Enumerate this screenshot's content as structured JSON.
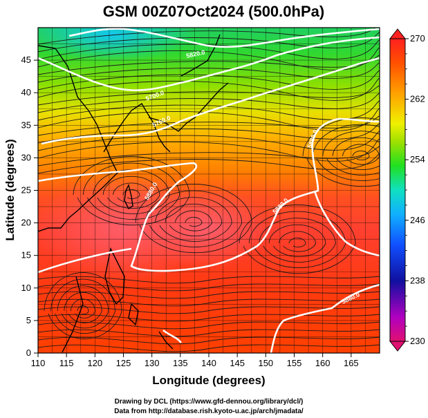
{
  "title": "GSM 00Z07Oct2024 (500.0hPa)",
  "xlabel": "Longitude (degrees)",
  "ylabel": "Latitude  (degrees)",
  "x_ticks": [
    "110",
    "115",
    "120",
    "125",
    "130",
    "135",
    "140",
    "145",
    "150",
    "155",
    "160",
    "165"
  ],
  "y_ticks": [
    "0",
    "5",
    "10",
    "15",
    "20",
    "25",
    "30",
    "35",
    "40",
    "45"
  ],
  "colorbar": {
    "ticks": [
      "270",
      "262",
      "254",
      "246",
      "238",
      "230"
    ],
    "colors": [
      "#e01070",
      "#b000c0",
      "#1010a0",
      "#1050ff",
      "#10b0ff",
      "#10e0c0",
      "#20e020",
      "#a0e000",
      "#f0f000",
      "#ffa000",
      "#ff5000",
      "#ff2020"
    ]
  },
  "contour_labels": [
    "5820.0",
    "5700.0",
    "5760.0",
    "5880.0",
    "5880.0",
    "5880.0",
    "5820.0",
    "5880.0"
  ],
  "credits": {
    "line1": "Drawing by DCL (https://www.gfd-dennou.org/library/dcl/)",
    "line2": "Data from http://database.rish.kyoto-u.ac.jp/arch/jmadata/"
  },
  "chart_data": {
    "type": "heatmap",
    "title": "GSM 00Z07Oct2024 (500.0hPa)",
    "xlabel": "Longitude (degrees)",
    "ylabel": "Latitude  (degrees)",
    "xlim": [
      110,
      170
    ],
    "ylim": [
      0,
      50
    ],
    "colorbar_range": [
      230,
      270
    ],
    "contour_values": [
      5700,
      5760,
      5820,
      5880
    ],
    "field_samples": [
      {
        "lon": 112,
        "lat": 48,
        "value": 254
      },
      {
        "lon": 130,
        "lat": 48,
        "value": 250
      },
      {
        "lon": 150,
        "lat": 48,
        "value": 253
      },
      {
        "lon": 168,
        "lat": 48,
        "value": 254
      },
      {
        "lon": 115,
        "lat": 40,
        "value": 256
      },
      {
        "lon": 135,
        "lat": 40,
        "value": 258
      },
      {
        "lon": 160,
        "lat": 40,
        "value": 259
      },
      {
        "lon": 120,
        "lat": 32,
        "value": 262
      },
      {
        "lon": 145,
        "lat": 32,
        "value": 263
      },
      {
        "lon": 165,
        "lat": 32,
        "value": 263
      },
      {
        "lon": 125,
        "lat": 25,
        "value": 267
      },
      {
        "lon": 138,
        "lat": 22,
        "value": 267
      },
      {
        "lon": 155,
        "lat": 22,
        "value": 265
      },
      {
        "lon": 115,
        "lat": 12,
        "value": 265
      },
      {
        "lon": 140,
        "lat": 10,
        "value": 266
      },
      {
        "lon": 165,
        "lat": 5,
        "value": 265
      }
    ]
  }
}
